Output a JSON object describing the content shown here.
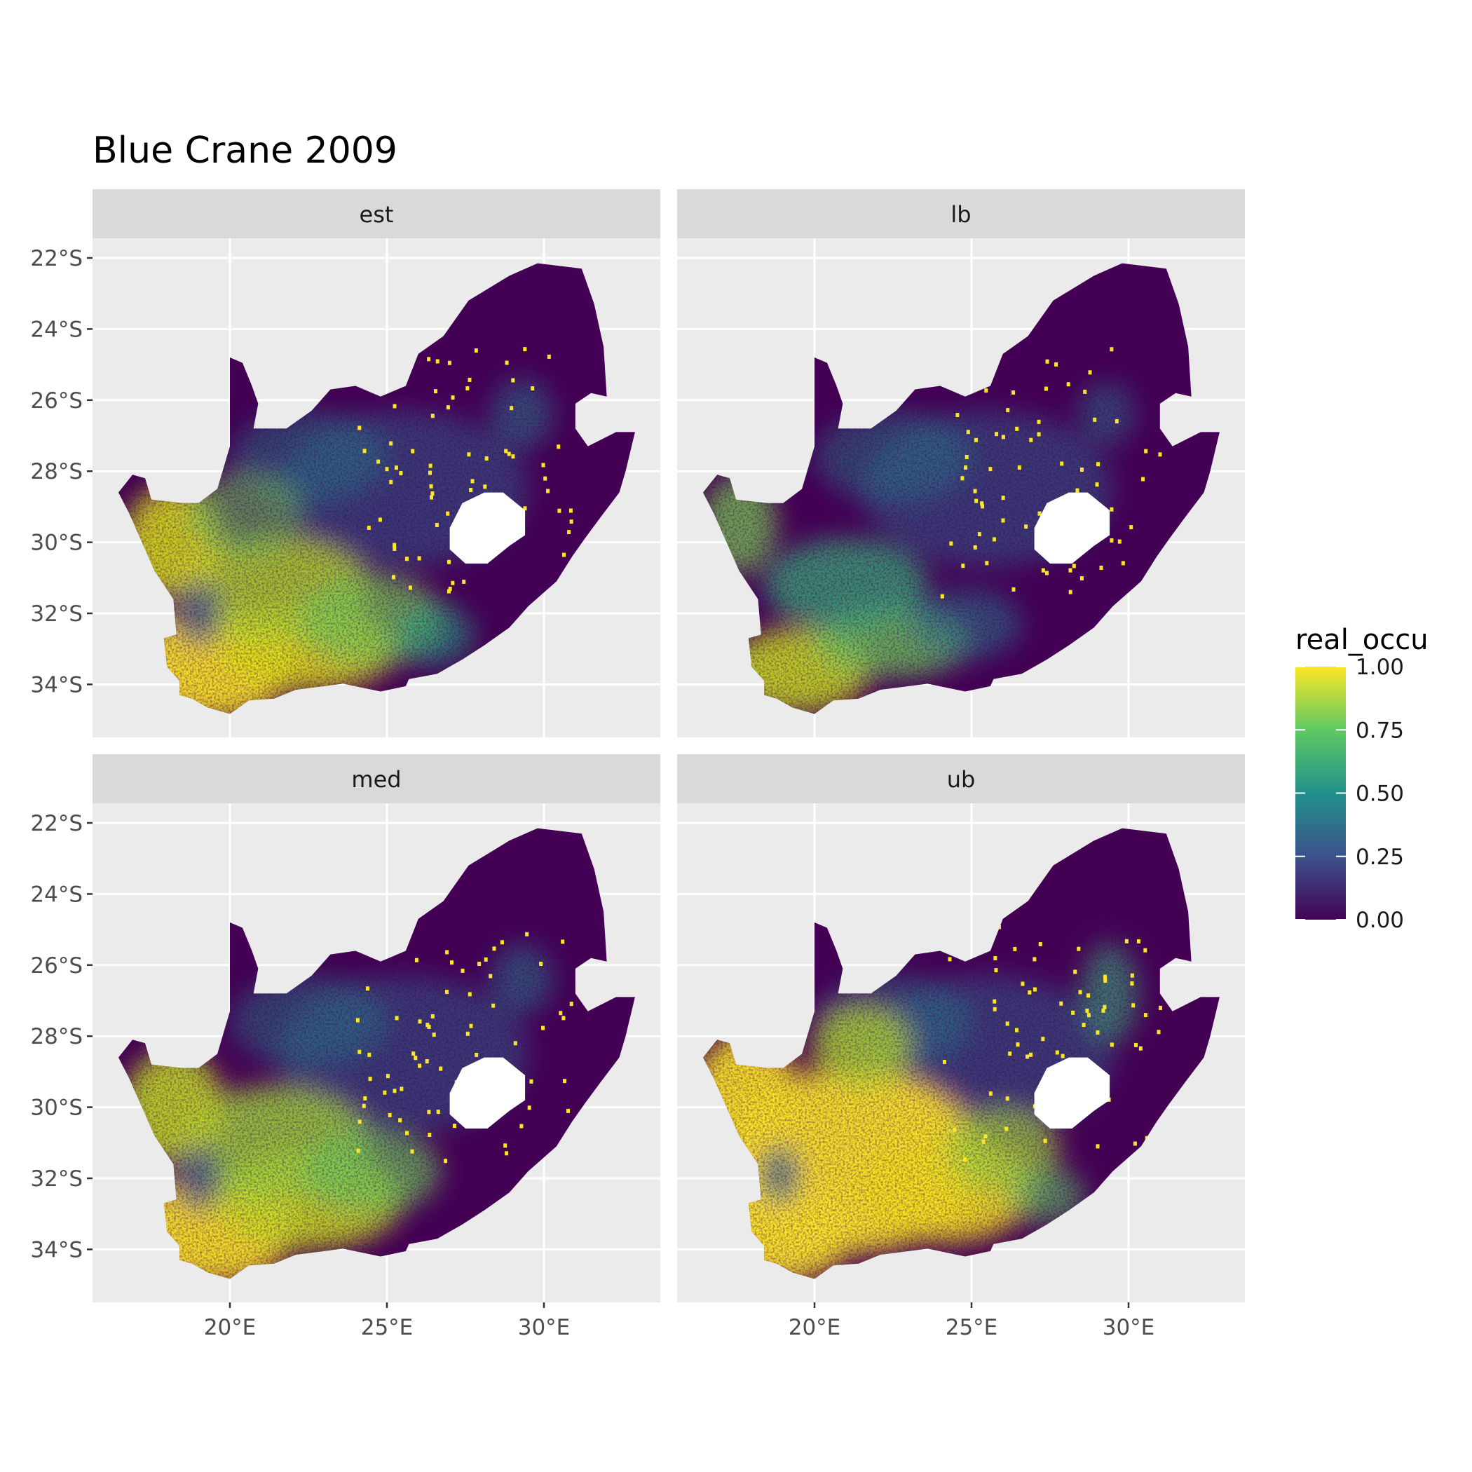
{
  "title": "Blue Crane 2009",
  "legend": {
    "title": "real_occu",
    "ticks": [
      "1.00",
      "0.75",
      "0.50",
      "0.25",
      "0.00"
    ],
    "tick_values": [
      1.0,
      0.75,
      0.5,
      0.25,
      0.0
    ],
    "colors": [
      "#440154",
      "#3b528b",
      "#21918c",
      "#5ec962",
      "#fde725"
    ]
  },
  "axes": {
    "x_ticks": [
      "20°E",
      "25°E",
      "30°E"
    ],
    "y_ticks": [
      "22°S",
      "24°S",
      "26°S",
      "28°S",
      "30°S",
      "32°S",
      "34°S"
    ],
    "x_tick_values": [
      20,
      25,
      30
    ],
    "y_tick_values": [
      -22,
      -24,
      -26,
      -28,
      -30,
      -32,
      -34
    ]
  },
  "panels": [
    {
      "id": "est",
      "label": "est"
    },
    {
      "id": "lb",
      "label": "lb"
    },
    {
      "id": "med",
      "label": "med"
    },
    {
      "id": "ub",
      "label": "ub"
    }
  ],
  "colors": {
    "panel_bg": "#ebebeb",
    "strip_bg": "#d9d9d9",
    "grid": "#ffffff",
    "tick_text": "#4d4d4d",
    "no_data": "#ffffff"
  }
}
